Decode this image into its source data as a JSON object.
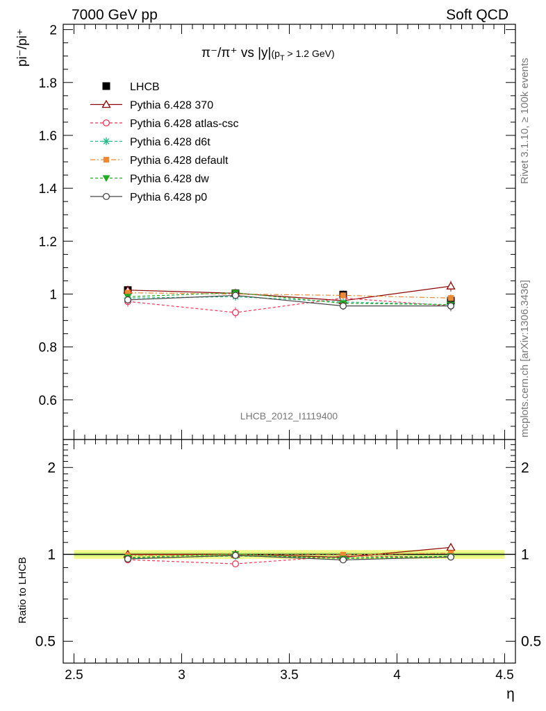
{
  "header": {
    "left": "7000 GeV pp",
    "right": "Soft QCD"
  },
  "side_labels": {
    "rivet": "Rivet 3.1.10, ≥ 100k events",
    "mcplots": "mcplots.cern.ch [arXiv:1306.3436]"
  },
  "watermark": "LHCB_2012_I1119400",
  "chart_data": [
    {
      "type": "line",
      "title_main": "π⁻/π⁺ vs |y|",
      "title_sub": "(p",
      "title_sub_idx": "T",
      "title_sub_tail": " > 1.2 GeV)",
      "ylabel": "pi⁻/pi⁺",
      "xlabel": "η",
      "xlim": [
        2.45,
        4.55
      ],
      "ylim": [
        0.45,
        2.02
      ],
      "xticks": [
        {
          "v": 2.5,
          "label": "2.5"
        },
        {
          "v": 3,
          "label": "3"
        },
        {
          "v": 3.5,
          "label": "3.5"
        },
        {
          "v": 4,
          "label": "4"
        },
        {
          "v": 4.5,
          "label": "4.5"
        }
      ],
      "yticks": [
        {
          "v": 0.6,
          "label": "0.6"
        },
        {
          "v": 0.8,
          "label": "0.8"
        },
        {
          "v": 1.0,
          "label": "1"
        },
        {
          "v": 1.2,
          "label": "1.2"
        },
        {
          "v": 1.4,
          "label": "1.4"
        },
        {
          "v": 1.6,
          "label": "1.6"
        },
        {
          "v": 1.8,
          "label": "1.8"
        },
        {
          "v": 2.0,
          "label": "2"
        }
      ],
      "x": [
        2.75,
        3.25,
        3.75,
        4.25
      ],
      "data": {
        "name": "LHCB",
        "values": [
          1.015,
          1.003,
          0.998,
          0.975
        ],
        "err": [
          0.015,
          0.012,
          0.015,
          0.02
        ]
      },
      "series": [
        {
          "name": "Pythia 6.428 370",
          "color": "#8b0000",
          "dash": "",
          "marker": "triangle-open",
          "values": [
            1.015,
            1.003,
            0.975,
            1.03
          ],
          "err": [
            0.012,
            0.01,
            0.012,
            0.02
          ]
        },
        {
          "name": "Pythia 6.428 atlas-csc",
          "color": "#ee3355",
          "dash": "4,3",
          "marker": "circle-open",
          "values": [
            0.972,
            0.93,
            0.985,
            0.955
          ],
          "err": [
            0.02,
            0.02,
            0.015,
            0.02
          ]
        },
        {
          "name": "Pythia 6.428 d6t",
          "color": "#22bb88",
          "dash": "4,3",
          "marker": "star",
          "values": [
            0.985,
            0.99,
            0.97,
            0.96
          ],
          "err": [
            0.012,
            0.012,
            0.012,
            0.015
          ]
        },
        {
          "name": "Pythia 6.428 default",
          "color": "#ee8833",
          "dash": "7,3,2,3",
          "marker": "square",
          "values": [
            1.005,
            1.0,
            0.995,
            0.985
          ],
          "err": [
            0.012,
            0.01,
            0.012,
            0.015
          ]
        },
        {
          "name": "Pythia 6.428 dw",
          "color": "#22aa22",
          "dash": "4,3",
          "marker": "triangle-down",
          "values": [
            0.99,
            1.005,
            0.965,
            0.96
          ],
          "err": [
            0.012,
            0.012,
            0.012,
            0.015
          ]
        },
        {
          "name": "Pythia 6.428 p0",
          "color": "#444444",
          "dash": "",
          "marker": "circle-open",
          "values": [
            0.978,
            0.995,
            0.955,
            0.955
          ],
          "err": [
            0.015,
            0.012,
            0.015,
            0.02
          ]
        }
      ]
    },
    {
      "type": "line",
      "ylabel": "Ratio to LHCB",
      "ylim": [
        0.42,
        2.5
      ],
      "log_y": true,
      "yticks": [
        {
          "v": 0.5,
          "label": "0.5"
        },
        {
          "v": 1,
          "label": "1"
        },
        {
          "v": 2,
          "label": "2"
        }
      ],
      "band_inner": [
        0.985,
        1.015
      ],
      "band_outer": [
        0.965,
        1.035
      ],
      "x": [
        2.75,
        3.25,
        3.75,
        4.25
      ],
      "series": [
        {
          "name": "Pythia 6.428 370",
          "values": [
            1.0,
            1.0,
            0.977,
            1.057
          ]
        },
        {
          "name": "Pythia 6.428 atlas-csc",
          "values": [
            0.958,
            0.927,
            0.987,
            0.979
          ]
        },
        {
          "name": "Pythia 6.428 d6t",
          "values": [
            0.97,
            0.987,
            0.972,
            0.985
          ]
        },
        {
          "name": "Pythia 6.428 default",
          "values": [
            0.99,
            0.997,
            0.997,
            1.01
          ]
        },
        {
          "name": "Pythia 6.428 dw",
          "values": [
            0.975,
            1.002,
            0.967,
            0.985
          ]
        },
        {
          "name": "Pythia 6.428 p0",
          "values": [
            0.964,
            0.992,
            0.957,
            0.979
          ]
        }
      ]
    }
  ]
}
